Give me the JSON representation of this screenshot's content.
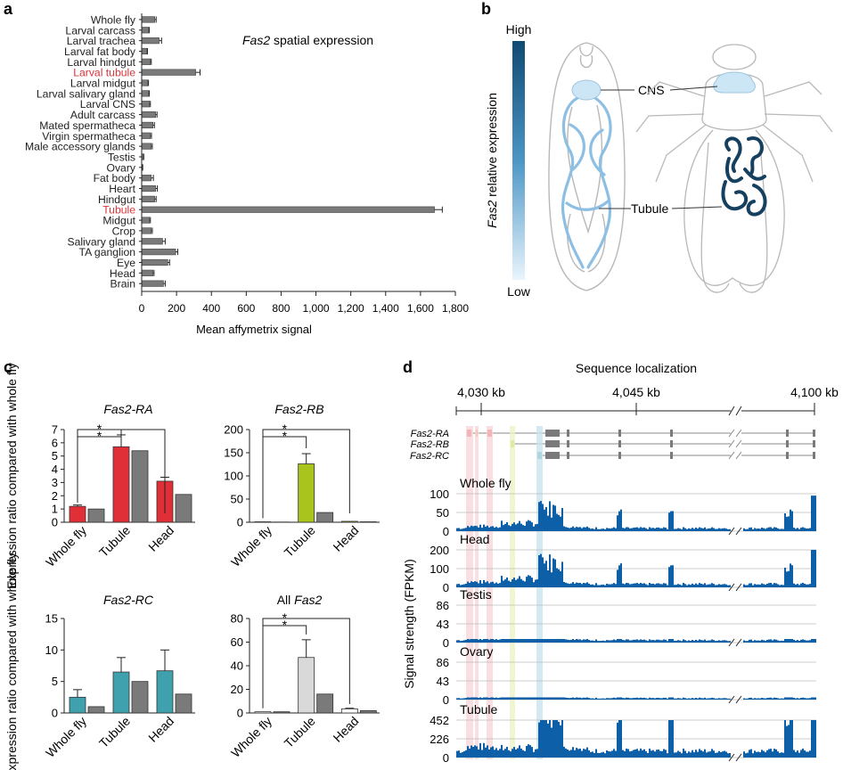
{
  "panel_labels": {
    "a": "a",
    "b": "b",
    "c": "c",
    "d": "d"
  },
  "colors": {
    "bar_gray": "#7a7a7a",
    "red": "#e02f36",
    "lime": "#a8c41d",
    "teal": "#3fa1ad",
    "light_gray": "#d9d9d9",
    "white_bar": "#ffffff",
    "track_blue": "#0d5fa7",
    "highlight_red": "#f8d7da",
    "highlight_yellow": "#eef3c5",
    "highlight_blue": "#c9e3ee",
    "red_text": "#d9343a",
    "fly_dark": "#16405f",
    "fly_light": "#a9d2ee"
  },
  "chart_data": [
    {
      "id": "a",
      "type": "bar",
      "orientation": "horizontal",
      "title": "Fas2 spatial expression",
      "title_gene": "Fas2",
      "title_rest": " spatial expression",
      "xlabel": "Mean affymetrix signal",
      "xlim": [
        0,
        1800
      ],
      "xticks": [
        0,
        200,
        400,
        600,
        800,
        1000,
        1200,
        1400,
        1600,
        1800
      ],
      "xtick_labels": [
        "0",
        "200",
        "400",
        "600",
        "800",
        "1,000",
        "1,200",
        "1,400",
        "1,600",
        "1,800"
      ],
      "categories": [
        "Whole fly",
        "Larval carcass",
        "Larval trachea",
        "Larval fat body",
        "Larval hindgut",
        "Larval tubule",
        "Larval midgut",
        "Larval salivary gland",
        "Larval CNS",
        "Adult carcass",
        "Mated spermatheca",
        "Virgin spermatheca",
        "Male accessory glands",
        "Testis",
        "Ovary",
        "Fat body",
        "Heart",
        "Hindgut",
        "Tubule",
        "Midgut",
        "Crop",
        "Salivary gland",
        "TA ganglion",
        "Eye",
        "Head",
        "Brain"
      ],
      "values": [
        75,
        40,
        100,
        30,
        50,
        310,
        35,
        40,
        45,
        80,
        65,
        50,
        55,
        10,
        5,
        55,
        80,
        75,
        1680,
        45,
        55,
        120,
        195,
        150,
        65,
        125
      ],
      "errors": [
        8,
        4,
        14,
        3,
        5,
        25,
        4,
        4,
        5,
        8,
        8,
        6,
        6,
        2,
        1,
        12,
        10,
        8,
        45,
        5,
        6,
        15,
        12,
        10,
        6,
        10
      ],
      "highlighted": [
        "Larval tubule",
        "Tubule"
      ]
    },
    {
      "id": "c1",
      "type": "bar",
      "title": "Fas2-RA",
      "ylabel": "Expression ratio compared with whole fly",
      "ylim": [
        0,
        7
      ],
      "yticks": [
        "0",
        "1",
        "2",
        "3",
        "4",
        "5",
        "6",
        "7"
      ],
      "categories": [
        "Whole fly",
        "Tubule",
        "Head"
      ],
      "series": [
        {
          "name": "colored",
          "color": "#e02f36",
          "values": [
            1.2,
            5.7,
            3.1
          ],
          "errors": [
            0.1,
            0.9,
            0.3
          ]
        },
        {
          "name": "gray",
          "color": "#7a7a7a",
          "values": [
            1.0,
            5.4,
            2.1
          ],
          "errors": [
            0,
            0,
            0
          ]
        }
      ],
      "significance": [
        {
          "from": "Whole fly",
          "to": "Tubule",
          "label": "*"
        },
        {
          "from": "Whole fly",
          "to": "Head",
          "label": "*"
        }
      ]
    },
    {
      "id": "c2",
      "type": "bar",
      "title": "Fas2-RB",
      "ylabel": "",
      "ylim": [
        0,
        200
      ],
      "yticks": [
        "0",
        "50",
        "100",
        "150",
        "200"
      ],
      "categories": [
        "Whole fly",
        "Tubule",
        "Head"
      ],
      "series": [
        {
          "name": "colored",
          "color": "#a8c41d",
          "values": [
            1,
            126,
            2
          ],
          "errors": [
            0,
            22,
            0
          ]
        },
        {
          "name": "gray",
          "color": "#7a7a7a",
          "values": [
            0.5,
            21,
            1
          ],
          "errors": [
            0,
            0,
            0
          ]
        }
      ],
      "significance": [
        {
          "from": "Whole fly",
          "to": "Tubule",
          "label": "*"
        },
        {
          "from": "Whole fly",
          "to": "Head",
          "label": "*"
        }
      ]
    },
    {
      "id": "c3",
      "type": "bar",
      "title": "Fas2-RC",
      "ylabel": "Expression ratio compared with whole fly",
      "ylim": [
        0,
        15
      ],
      "yticks": [
        "0",
        "5",
        "10",
        "15"
      ],
      "categories": [
        "Whole fly",
        "Tubule",
        "Head"
      ],
      "series": [
        {
          "name": "colored",
          "color": "#3fa1ad",
          "values": [
            2.5,
            6.5,
            6.7
          ],
          "errors": [
            1.2,
            2.3,
            3.3
          ]
        },
        {
          "name": "gray",
          "color": "#7a7a7a",
          "values": [
            1.0,
            5.0,
            3.0
          ],
          "errors": [
            0,
            0,
            0
          ]
        }
      ],
      "significance": []
    },
    {
      "id": "c4",
      "type": "bar",
      "title": "All Fas2",
      "title_gene": "Fas2",
      "title_rest": "All ",
      "ylabel": "",
      "ylim": [
        0,
        80
      ],
      "yticks": [
        "0",
        "20",
        "40",
        "60",
        "80"
      ],
      "categories": [
        "Whole fly",
        "Tubule",
        "Head"
      ],
      "series": [
        {
          "name": "colored",
          "color": "#ffffff",
          "values": [
            1,
            47,
            3.5
          ],
          "errors": [
            0,
            15,
            0.5
          ],
          "colors": [
            "#ffffff",
            "#d9d9d9",
            "#ffffff"
          ]
        },
        {
          "name": "gray",
          "color": "#7a7a7a",
          "values": [
            1,
            16,
            2
          ],
          "errors": [
            0,
            0,
            0
          ]
        }
      ],
      "significance": [
        {
          "from": "Whole fly",
          "to": "Tubule",
          "label": "*"
        },
        {
          "from": "Whole fly",
          "to": "Head",
          "label": "*"
        }
      ]
    },
    {
      "id": "d",
      "type": "area",
      "title": "Sequence localization",
      "ylabel": "Signal strength (FPKM)",
      "coordinate_labels": [
        "4,030 kb",
        "4,045 kb",
        "4,100 kb"
      ],
      "transcripts": [
        "Fas2-RA",
        "Fas2-RB",
        "Fas2-RC"
      ],
      "tracks": [
        {
          "name": "Whole fly",
          "yticks": [
            "100",
            "50",
            "0"
          ],
          "ymax": 100,
          "scale": 1.0
        },
        {
          "name": "Head",
          "yticks": [
            "200",
            "100",
            "0"
          ],
          "ymax": 200,
          "scale": 1.1
        },
        {
          "name": "Testis",
          "yticks": [
            "86",
            "43",
            "0"
          ],
          "ymax": 86,
          "scale": 0.1
        },
        {
          "name": "Ovary",
          "yticks": [
            "86",
            "43",
            "0"
          ],
          "ymax": 86,
          "scale": 0.06
        },
        {
          "name": "Tubule",
          "yticks": [
            "452",
            "226",
            "0"
          ],
          "ymax": 452,
          "scale": 2.2
        }
      ]
    }
  ],
  "panel_b": {
    "axis_label_gene": "Fas2",
    "axis_label_rest": " relative expression",
    "high": "High",
    "low": "Low",
    "cns_label": "CNS",
    "tubule_label": "Tubule"
  }
}
